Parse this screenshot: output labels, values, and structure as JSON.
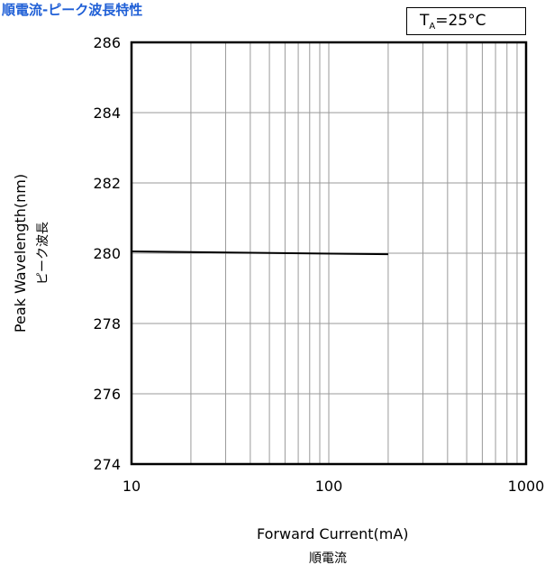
{
  "chart_data": {
    "type": "line",
    "title": "順電流-ピーク波長特性",
    "condition": "T",
    "condition_sub": "A",
    "condition_value": "=25°C",
    "xlabel": "Forward Current(mA)",
    "xlabel_jp": "順電流",
    "ylabel": "Peak Wavelength(nm)",
    "ylabel_jp": "ピーク波長",
    "xscale": "log",
    "xlim": [
      10,
      1000
    ],
    "ylim": [
      274,
      286
    ],
    "xticks": [
      10,
      100,
      1000
    ],
    "yticks": [
      274,
      276,
      278,
      280,
      282,
      284,
      286
    ],
    "grid": true,
    "series": [
      {
        "x": [
          10,
          200
        ],
        "y": [
          280.05,
          279.97
        ],
        "color": "#000000"
      }
    ]
  }
}
